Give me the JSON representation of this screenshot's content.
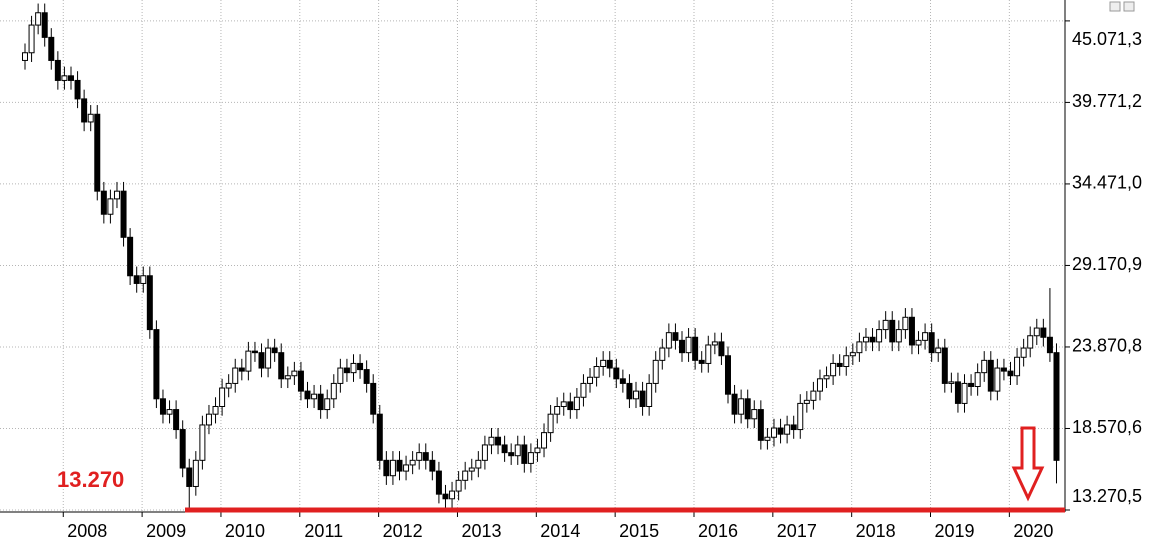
{
  "chart_data": {
    "type": "candlestick",
    "categories": [
      null,
      null,
      null,
      null,
      null,
      null,
      null,
      null,
      null,
      null,
      null,
      "2008",
      null,
      null,
      null,
      null,
      null,
      null,
      null,
      null,
      null,
      null,
      null,
      "2009",
      null,
      null,
      null,
      null,
      null,
      null,
      null,
      null,
      null,
      null,
      null,
      "2010",
      null,
      null,
      null,
      null,
      null,
      null,
      null,
      null,
      null,
      null,
      null,
      "2011",
      null,
      null,
      null,
      null,
      null,
      null,
      null,
      null,
      null,
      null,
      null,
      "2012",
      null,
      null,
      null,
      null,
      null,
      null,
      null,
      null,
      null,
      null,
      null,
      "2013",
      null,
      null,
      null,
      null,
      null,
      null,
      null,
      null,
      null,
      null,
      null,
      "2014",
      null,
      null,
      null,
      null,
      null,
      null,
      null,
      null,
      null,
      null,
      null,
      "2015",
      null,
      null,
      null,
      null,
      null,
      null,
      null,
      null,
      null,
      null,
      null,
      "2016",
      null,
      null,
      null,
      null,
      null,
      null,
      null,
      null,
      null,
      null,
      null,
      "2017",
      null,
      null,
      null,
      null,
      null,
      null,
      null,
      null,
      null,
      null,
      null,
      "2018",
      null,
      null,
      null,
      null,
      null,
      null,
      null,
      null,
      null,
      null,
      null,
      "2019",
      null,
      null,
      null,
      null,
      null,
      null,
      null,
      null,
      null,
      null,
      null,
      "2020",
      null,
      null
    ],
    "open": [
      42500,
      43000,
      44800,
      45600,
      44000,
      42500,
      41200,
      41500,
      41200,
      40000,
      38500,
      39000,
      34000,
      32500,
      33500,
      34000,
      31000,
      28500,
      28000,
      28500,
      25000,
      20500,
      19500,
      19800,
      18500,
      16000,
      14800,
      16500,
      18800,
      19500,
      20000,
      21200,
      21500,
      22500,
      22300,
      23600,
      23500,
      22500,
      23800,
      23500,
      21800,
      22000,
      22300,
      21000,
      20500,
      20800,
      19800,
      20500,
      21500,
      22500,
      22200,
      22800,
      22400,
      21500,
      19500,
      16500,
      15500,
      16500,
      15800,
      16200,
      16500,
      17000,
      16500,
      15800,
      14300,
      14000,
      14500,
      15200,
      15800,
      16000,
      16500,
      17500,
      18000,
      17500,
      17000,
      16800,
      17500,
      16300,
      17000,
      17300,
      18300,
      19500,
      20000,
      20300,
      19800,
      20600,
      21500,
      21900,
      22600,
      23000,
      22500,
      21800,
      21500,
      20500,
      21000,
      20000,
      21500,
      23000,
      23800,
      24800,
      24300,
      23500,
      24500,
      23000,
      22800,
      24000,
      24200,
      23300,
      20800,
      19500,
      20500,
      19200,
      19800,
      17800,
      18000,
      18600,
      18200,
      18800,
      18500,
      20200,
      20400,
      21000,
      21800,
      22000,
      22800,
      22600,
      23300,
      23500,
      24200,
      24500,
      24200,
      25000,
      25600,
      24200,
      25000,
      25800,
      24000,
      24300,
      24800,
      23500,
      23800,
      21500,
      21600,
      20200,
      21500,
      21300,
      22200,
      23000,
      21000,
      22500,
      22300,
      22000,
      23200,
      23800,
      24600,
      25100,
      24500,
      23500
    ],
    "high": [
      43600,
      45400,
      46200,
      46200,
      44600,
      43100,
      42100,
      42100,
      41800,
      40600,
      39600,
      39600,
      34600,
      34100,
      34600,
      34600,
      31600,
      29100,
      29100,
      29100,
      25600,
      21100,
      20400,
      20400,
      19100,
      16600,
      17100,
      19400,
      20100,
      20600,
      21800,
      22100,
      23100,
      23100,
      24200,
      24200,
      24100,
      24400,
      24400,
      24100,
      22600,
      22900,
      22900,
      21600,
      21400,
      21400,
      21100,
      22100,
      23100,
      23100,
      23400,
      23400,
      23000,
      22100,
      20100,
      17100,
      17100,
      17100,
      16800,
      17100,
      17600,
      17600,
      17100,
      16400,
      14900,
      15100,
      15800,
      16400,
      16600,
      17100,
      18100,
      18600,
      18600,
      18100,
      17600,
      18100,
      18100,
      17600,
      17900,
      18900,
      20100,
      20600,
      20900,
      20900,
      21200,
      22100,
      22500,
      23200,
      23600,
      23600,
      23100,
      22400,
      22100,
      21600,
      21600,
      22100,
      23600,
      24400,
      25400,
      25400,
      24900,
      25100,
      25100,
      23600,
      24600,
      24800,
      24800,
      23900,
      21400,
      21100,
      21100,
      20400,
      20400,
      18600,
      19200,
      19200,
      19400,
      19400,
      20800,
      21000,
      21600,
      22400,
      22600,
      23400,
      23400,
      23900,
      24100,
      24800,
      25100,
      25100,
      25600,
      26200,
      26200,
      25600,
      26400,
      26400,
      24900,
      25400,
      25400,
      24400,
      24400,
      22200,
      22200,
      22100,
      22100,
      22800,
      23600,
      23600,
      23100,
      23100,
      22900,
      23800,
      24400,
      25200,
      25700,
      25700,
      27700,
      24100
    ],
    "low": [
      41900,
      42400,
      44200,
      43400,
      41900,
      40600,
      40600,
      40600,
      39400,
      37900,
      37900,
      33400,
      31900,
      31900,
      32900,
      30400,
      27900,
      27400,
      27400,
      24400,
      19900,
      18900,
      18900,
      17900,
      15400,
      13300,
      14200,
      15900,
      18200,
      18900,
      19400,
      20600,
      20900,
      21700,
      21700,
      22900,
      21900,
      21900,
      22900,
      21200,
      21200,
      21400,
      20400,
      19900,
      19900,
      19200,
      19200,
      19900,
      20900,
      21600,
      21600,
      21800,
      20900,
      18900,
      15900,
      14900,
      14900,
      15200,
      15200,
      15600,
      15900,
      15900,
      15200,
      13700,
      13400,
      13400,
      13900,
      14600,
      15200,
      15400,
      15900,
      16900,
      16900,
      16400,
      16200,
      16200,
      15700,
      15700,
      16400,
      16700,
      17700,
      18900,
      19400,
      19200,
      19200,
      20000,
      20900,
      21300,
      22000,
      21900,
      21200,
      20900,
      19900,
      19900,
      19400,
      19400,
      20900,
      22400,
      23200,
      23700,
      22900,
      22900,
      22400,
      22200,
      22200,
      23400,
      22700,
      20200,
      18900,
      18900,
      18600,
      18600,
      17200,
      17200,
      17400,
      17600,
      17600,
      17900,
      17900,
      19600,
      19800,
      20400,
      21200,
      21400,
      22000,
      22000,
      22700,
      22900,
      23600,
      23600,
      23600,
      24400,
      23600,
      23600,
      24400,
      23400,
      23400,
      23700,
      22900,
      22900,
      20900,
      20900,
      19600,
      19600,
      20700,
      20700,
      21600,
      20400,
      20400,
      21700,
      21400,
      21400,
      22600,
      23200,
      24000,
      23900,
      22900,
      15000
    ],
    "close": [
      43000,
      44800,
      45600,
      44000,
      42500,
      41200,
      41500,
      41200,
      40000,
      38500,
      39000,
      34000,
      32500,
      33500,
      34000,
      31000,
      28500,
      28000,
      28500,
      25000,
      20500,
      19500,
      19800,
      18500,
      16000,
      14800,
      16500,
      18800,
      19500,
      20000,
      21200,
      21500,
      22500,
      22300,
      23600,
      23500,
      22500,
      23800,
      23500,
      21800,
      22000,
      22300,
      21000,
      20500,
      20800,
      19800,
      20500,
      21500,
      22500,
      22200,
      22800,
      22400,
      21500,
      19500,
      16500,
      15500,
      16500,
      15800,
      16200,
      16500,
      17000,
      16500,
      15800,
      14300,
      14000,
      14500,
      15200,
      15800,
      16000,
      16500,
      17500,
      18000,
      17500,
      17000,
      16800,
      17500,
      16300,
      17000,
      17300,
      18300,
      19500,
      20000,
      20300,
      19800,
      20600,
      21500,
      21900,
      22600,
      23000,
      22500,
      21800,
      21500,
      20500,
      21000,
      20000,
      21500,
      23000,
      23800,
      24800,
      24300,
      23500,
      24500,
      23000,
      22800,
      24000,
      24200,
      23300,
      20800,
      19500,
      20500,
      19200,
      19800,
      17800,
      18000,
      18600,
      18200,
      18800,
      18500,
      20200,
      20400,
      21000,
      21800,
      22000,
      22800,
      22600,
      23300,
      23500,
      24200,
      24500,
      24200,
      25000,
      25600,
      24200,
      25000,
      25800,
      24000,
      24300,
      24800,
      23500,
      23800,
      21500,
      21600,
      20200,
      21500,
      21300,
      22200,
      23000,
      21000,
      22500,
      22300,
      22000,
      23200,
      23800,
      24600,
      25100,
      24500,
      23500,
      16500
    ],
    "up_color": "#ffffff",
    "down_color": "#000000",
    "outline_color": "#000000",
    "ylim": [
      13140,
      46430
    ],
    "yticks": [
      {
        "value": 13270.5,
        "label": "13.270,5"
      },
      {
        "value": 18570.6,
        "label": "18.570,6"
      },
      {
        "value": 23870.8,
        "label": "23.870,8"
      },
      {
        "value": 29170.9,
        "label": "29.170,9"
      },
      {
        "value": 34471.0,
        "label": "34.471,0"
      },
      {
        "value": 39771.2,
        "label": "39.771,2"
      },
      {
        "value": 45071.3,
        "label": "45.071,3"
      }
    ],
    "grid": true,
    "annotation": {
      "text": "13.270",
      "value": 13270,
      "color": "#e02020"
    }
  }
}
